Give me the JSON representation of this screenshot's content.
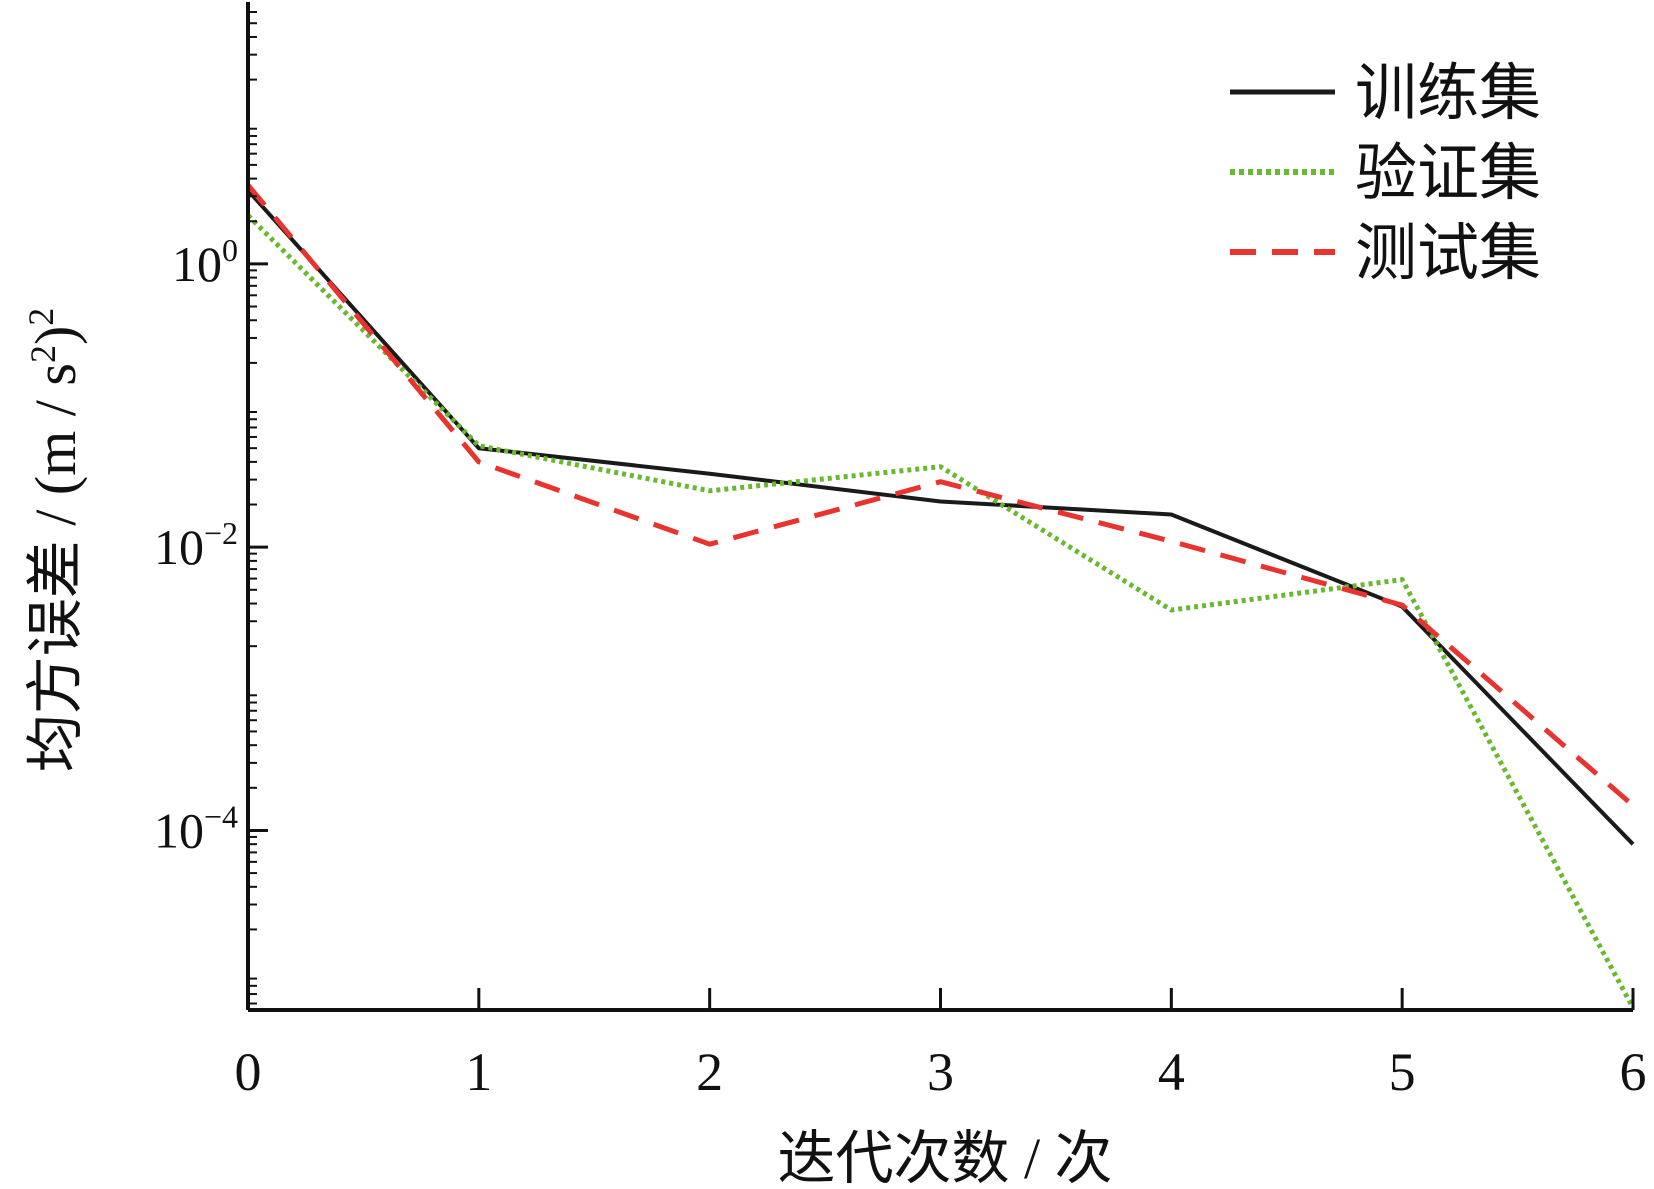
{
  "chart_data": {
    "type": "line",
    "title": "",
    "xlabel": "迭代次数 / 次",
    "ylabel": {
      "main": "均方误差 / (m / s",
      "sup1": "2",
      "close": ")",
      "sup2": "2"
    },
    "xlim": [
      0,
      6
    ],
    "ylim": [
      5.4e-06,
      62
    ],
    "yscale": "log",
    "x_ticks": [
      0,
      1,
      2,
      3,
      4,
      5,
      6
    ],
    "x_tick_labels": [
      "0",
      "1",
      "2",
      "3",
      "4",
      "5",
      "6"
    ],
    "y_ticks": [
      {
        "value": 1,
        "base": "10",
        "exp": "0"
      },
      {
        "value": 0.01,
        "base": "10",
        "exp": "−2"
      },
      {
        "value": 0.0001,
        "base": "10",
        "exp": "−4"
      }
    ],
    "legend_position": "top-right",
    "x": [
      0,
      1,
      2,
      3,
      4,
      5,
      6
    ],
    "series": [
      {
        "name": "训练集",
        "color": "#1a1a1a",
        "style": "solid",
        "values": [
          3.3,
          0.05,
          0.033,
          0.021,
          0.017,
          0.0038,
          8e-05
        ]
      },
      {
        "name": "验证集",
        "color": "#6ab82f",
        "style": "dotted",
        "values": [
          2.2,
          0.052,
          0.025,
          0.037,
          0.0036,
          0.0059,
          5.6e-06
        ]
      },
      {
        "name": "测试集",
        "color": "#e8332f",
        "style": "dashed",
        "values": [
          3.6,
          0.04,
          0.0105,
          0.029,
          0.011,
          0.0039,
          0.00015
        ]
      }
    ]
  }
}
